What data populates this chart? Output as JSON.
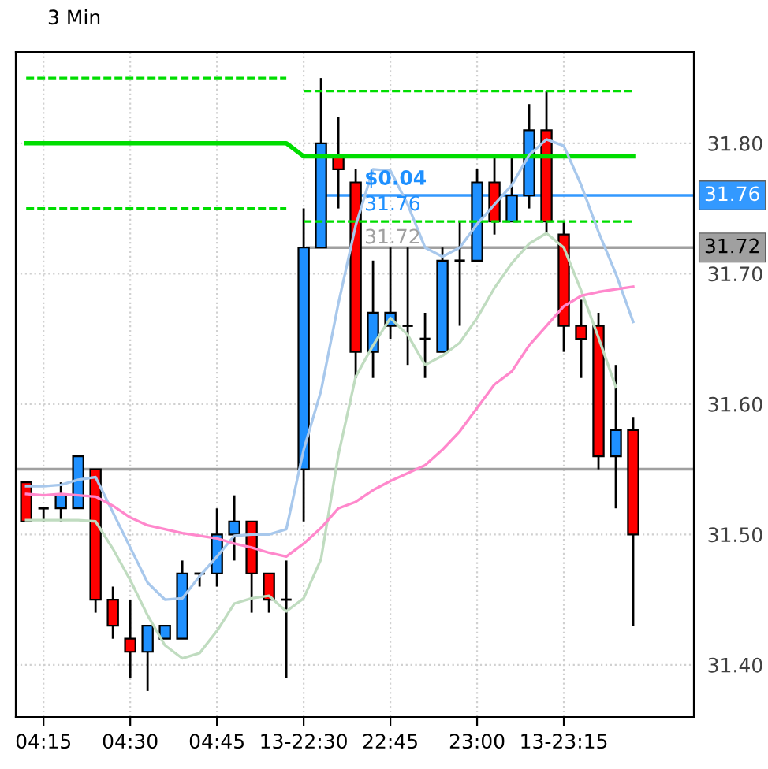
{
  "chart_data": {
    "type": "candlestick",
    "title": "3 Min",
    "categories": [
      null,
      "04:15",
      null,
      null,
      null,
      null,
      "04:30",
      null,
      null,
      null,
      null,
      "04:45",
      null,
      null,
      null,
      null,
      "13-22:30",
      null,
      null,
      null,
      null,
      "22:45",
      null,
      null,
      null,
      null,
      "23:00",
      null,
      null,
      null,
      null,
      "13-23:15",
      null,
      null,
      null,
      null
    ],
    "ohlc": [
      [
        31.54,
        31.54,
        31.51,
        31.51
      ],
      [
        31.52,
        31.52,
        31.51,
        31.52
      ],
      [
        31.52,
        31.54,
        31.51,
        31.53
      ],
      [
        31.52,
        31.56,
        31.52,
        31.56
      ],
      [
        31.55,
        31.55,
        31.44,
        31.45
      ],
      [
        31.45,
        31.46,
        31.42,
        31.43
      ],
      [
        31.42,
        31.45,
        31.39,
        31.41
      ],
      [
        31.41,
        31.43,
        31.38,
        31.43
      ],
      [
        31.42,
        31.43,
        31.42,
        31.43
      ],
      [
        31.42,
        31.48,
        31.42,
        31.47
      ],
      [
        31.47,
        31.47,
        31.46,
        31.47
      ],
      [
        31.47,
        31.52,
        31.46,
        31.5
      ],
      [
        31.5,
        31.53,
        31.48,
        31.51
      ],
      [
        31.51,
        31.51,
        31.44,
        31.47
      ],
      [
        31.47,
        31.47,
        31.44,
        31.45
      ],
      [
        31.45,
        31.48,
        31.39,
        31.45
      ],
      [
        31.55,
        31.75,
        31.51,
        31.72
      ],
      [
        31.72,
        31.85,
        31.72,
        31.8
      ],
      [
        31.79,
        31.82,
        31.75,
        31.78
      ],
      [
        31.77,
        31.78,
        31.62,
        31.64
      ],
      [
        31.64,
        31.71,
        31.62,
        31.67
      ],
      [
        31.66,
        31.72,
        31.65,
        31.67
      ],
      [
        31.66,
        31.72,
        31.63,
        31.66
      ],
      [
        31.65,
        31.67,
        31.62,
        31.65
      ],
      [
        31.64,
        31.72,
        31.64,
        31.71
      ],
      [
        31.71,
        31.74,
        31.66,
        31.71
      ],
      [
        31.71,
        31.78,
        31.71,
        31.77
      ],
      [
        31.77,
        31.79,
        31.73,
        31.74
      ],
      [
        31.74,
        31.79,
        31.74,
        31.76
      ],
      [
        31.76,
        31.83,
        31.75,
        31.81
      ],
      [
        31.81,
        31.84,
        31.73,
        31.74
      ],
      [
        31.73,
        31.74,
        31.64,
        31.66
      ],
      [
        31.66,
        31.68,
        31.62,
        31.65
      ],
      [
        31.66,
        31.67,
        31.55,
        31.56
      ],
      [
        31.56,
        31.63,
        31.52,
        31.58
      ],
      [
        31.58,
        31.59,
        31.43,
        31.5
      ]
    ],
    "colors": [
      "#ff0000",
      "#000000",
      "#1e90ff",
      "#1e90ff",
      "#ff0000",
      "#ff0000",
      "#ff0000",
      "#1e90ff",
      "#1e90ff",
      "#1e90ff",
      "#000000",
      "#1e90ff",
      "#1e90ff",
      "#ff0000",
      "#ff0000",
      "#000000",
      "#1e90ff",
      "#1e90ff",
      "#ff0000",
      "#ff0000",
      "#1e90ff",
      "#1e90ff",
      "#000000",
      "#000000",
      "#1e90ff",
      "#000000",
      "#1e90ff",
      "#ff0000",
      "#1e90ff",
      "#1e90ff",
      "#ff0000",
      "#ff0000",
      "#ff0000",
      "#ff0000",
      "#1e90ff",
      "#ff0000"
    ],
    "series": [
      {
        "type": "line",
        "color": "#00dd00",
        "line_style": "dashed",
        "values": [
          31.85,
          31.85,
          31.85,
          31.85,
          31.85,
          31.85,
          31.85,
          31.85,
          31.85,
          31.85,
          31.85,
          31.85,
          31.85,
          31.85,
          31.85,
          31.85,
          null,
          null,
          null,
          null,
          null,
          null,
          null,
          null,
          null,
          null,
          null,
          null,
          null,
          null,
          null,
          null,
          null,
          null,
          null,
          null
        ]
      },
      {
        "type": "line",
        "color": "#00dd00",
        "line_style": "dashed",
        "values": [
          null,
          null,
          null,
          null,
          null,
          null,
          null,
          null,
          null,
          null,
          null,
          null,
          null,
          null,
          null,
          null,
          31.84,
          31.84,
          31.84,
          31.84,
          31.84,
          31.84,
          31.84,
          31.84,
          31.84,
          31.84,
          31.84,
          31.84,
          31.84,
          31.84,
          31.84,
          31.84,
          31.84,
          31.84,
          31.84,
          31.84
        ]
      },
      {
        "type": "line",
        "color": "#00dd00",
        "line_style": "dashed",
        "values": [
          31.75,
          31.75,
          31.75,
          31.75,
          31.75,
          31.75,
          31.75,
          31.75,
          31.75,
          31.75,
          31.75,
          31.75,
          31.75,
          31.75,
          31.75,
          31.75,
          null,
          null,
          null,
          null,
          null,
          null,
          null,
          null,
          null,
          null,
          null,
          null,
          null,
          null,
          null,
          null,
          null,
          null,
          null,
          null
        ]
      },
      {
        "type": "line",
        "color": "#00dd00",
        "line_style": "dashed",
        "values": [
          null,
          null,
          null,
          null,
          null,
          null,
          null,
          null,
          null,
          null,
          null,
          null,
          null,
          null,
          null,
          null,
          31.74,
          31.74,
          31.74,
          31.74,
          31.74,
          31.74,
          31.74,
          31.74,
          31.74,
          31.74,
          31.74,
          31.74,
          31.74,
          31.74,
          31.74,
          31.74,
          31.74,
          31.74,
          31.74,
          31.74
        ]
      },
      {
        "type": "line",
        "color": "#00dd00",
        "line_style": "solid",
        "values": [
          31.8,
          31.8,
          31.8,
          31.8,
          31.8,
          31.8,
          31.8,
          31.8,
          31.8,
          31.8,
          31.8,
          31.8,
          31.8,
          31.8,
          31.8,
          31.8,
          31.79,
          31.79,
          31.79,
          31.79,
          31.79,
          31.79,
          31.79,
          31.79,
          31.79,
          31.79,
          31.79,
          31.79,
          31.79,
          31.79,
          31.79,
          31.79,
          31.79,
          31.79,
          31.79,
          31.79
        ]
      },
      {
        "type": "line",
        "color": "#a8c8ec",
        "line_style": "solid",
        "values": [
          31.537,
          31.537,
          31.538,
          31.542,
          31.544,
          31.517,
          31.49,
          31.463,
          31.45,
          31.451,
          31.468,
          31.483,
          31.499,
          31.5,
          31.5,
          31.504,
          31.565,
          31.61,
          31.677,
          31.737,
          31.78,
          31.779,
          31.753,
          31.72,
          31.713,
          31.72,
          31.738,
          31.753,
          31.768,
          31.791,
          31.803,
          31.798,
          31.768,
          31.732,
          31.7,
          31.663
        ]
      },
      {
        "type": "line",
        "color": "#c0dcc0",
        "line_style": "solid",
        "values": [
          31.511,
          31.511,
          31.511,
          31.511,
          31.51,
          31.489,
          31.465,
          31.438,
          31.415,
          31.405,
          31.409,
          31.426,
          31.447,
          31.451,
          31.453,
          31.441,
          31.451,
          31.481,
          31.561,
          31.621,
          31.645,
          31.666,
          31.653,
          31.63,
          31.637,
          31.647,
          31.666,
          31.689,
          31.708,
          31.723,
          31.731,
          31.72,
          31.687,
          31.651,
          31.613,
          null
        ]
      },
      {
        "type": "line",
        "color": "#ff88cc",
        "line_style": "solid",
        "values": [
          31.531,
          31.53,
          31.531,
          31.53,
          31.529,
          31.522,
          31.513,
          31.507,
          31.504,
          31.501,
          31.499,
          31.497,
          31.493,
          31.49,
          31.486,
          31.483,
          31.493,
          31.505,
          31.52,
          31.525,
          31.534,
          31.541,
          31.547,
          31.553,
          31.565,
          31.579,
          31.597,
          31.615,
          31.625,
          31.645,
          31.66,
          31.675,
          31.683,
          31.686,
          31.688,
          31.69
        ]
      }
    ],
    "ylim": [
      31.36,
      31.87
    ],
    "yticks": [
      {
        "value": 31.4,
        "label": "31.40"
      },
      {
        "value": 31.5,
        "label": "31.50"
      },
      {
        "value": 31.6,
        "label": "31.60"
      },
      {
        "value": 31.7,
        "label": "31.70"
      },
      {
        "value": 31.8,
        "label": "31.80"
      }
    ],
    "ref_lines": [
      {
        "axis": "y",
        "value": 31.55,
        "color": "#a0a0a0",
        "line_style": "solid"
      },
      {
        "axis": "y",
        "value": 31.72,
        "label": "31.72",
        "color": "#a0a0a0",
        "line_style": "solid"
      },
      {
        "axis": "y",
        "value": 31.76,
        "label": "31.76",
        "color": "#3399ff",
        "line_style": "solid"
      }
    ],
    "annotations": [
      {
        "text": "$0.04",
        "y": 31.765
      },
      {
        "text": "31.76",
        "y": 31.76
      },
      {
        "text": "31.72",
        "y": 31.72
      }
    ],
    "grid": true,
    "legend": false,
    "marker": "none"
  }
}
